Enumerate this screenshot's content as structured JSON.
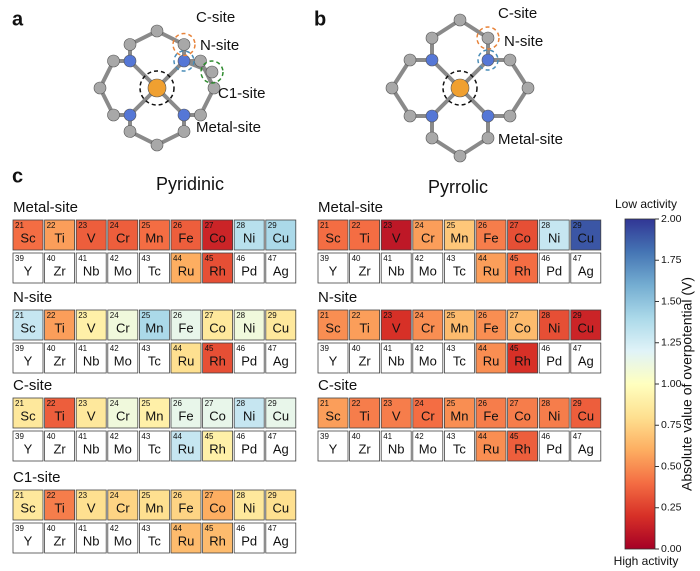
{
  "panel_labels": [
    "a",
    "b",
    "c"
  ],
  "diagrams": [
    {
      "labels": [
        {
          "text": "C-site",
          "color": "#e8833a"
        },
        {
          "text": "N-site",
          "color": "#4a8db8"
        },
        {
          "text": "C1-site",
          "color": "#2e8b2e"
        },
        {
          "text": "Metal-site",
          "color": "#111111"
        }
      ]
    },
    {
      "labels": [
        {
          "text": "C-site",
          "color": "#e8833a"
        },
        {
          "text": "N-site",
          "color": "#4a8db8"
        },
        {
          "text": "Metal-site",
          "color": "#111111"
        }
      ]
    }
  ],
  "elements": {
    "numbers": [
      21,
      22,
      23,
      24,
      25,
      26,
      27,
      28,
      29,
      39,
      40,
      41,
      42,
      43,
      44,
      45,
      46,
      47
    ],
    "symbols": [
      "Sc",
      "Ti",
      "V",
      "Cr",
      "Mn",
      "Fe",
      "Co",
      "Ni",
      "Cu",
      "Y",
      "Zr",
      "Nb",
      "Mo",
      "Tc",
      "Ru",
      "Rh",
      "Pd",
      "Ag"
    ]
  },
  "colorbar": {
    "label": "Absolute value of overpotential (V)",
    "top_label": "Low activity",
    "bottom_label": "High activity",
    "top_color": "#2f2f8f",
    "bottom_color": "#b0103a",
    "ylim": [
      0,
      2
    ],
    "yticks": [
      {
        "value": 0,
        "label": "0.00"
      },
      {
        "value": 0.25,
        "label": "0.25"
      },
      {
        "value": 0.5,
        "label": "0.50"
      },
      {
        "value": 0.75,
        "label": "0.75"
      },
      {
        "value": 1,
        "label": "1.00"
      },
      {
        "value": 1.25,
        "label": "1.25"
      },
      {
        "value": 1.5,
        "label": "1.50"
      },
      {
        "value": 1.75,
        "label": "1.75"
      },
      {
        "value": 2,
        "label": "2.00"
      }
    ],
    "colormap": [
      "#a50026",
      "#d73027",
      "#f46d43",
      "#fdae61",
      "#fee090",
      "#ffffbf",
      "#e0f3f8",
      "#abd9e9",
      "#74add1",
      "#4575b4",
      "#313695"
    ]
  },
  "chart_data": [
    {
      "type": "heatmap",
      "title": "Pyridinic",
      "panels": [
        {
          "title": "Metal-site",
          "values": [
            0.4,
            0.55,
            0.35,
            0.35,
            0.4,
            0.35,
            0.15,
            1.35,
            1.4,
            null,
            null,
            null,
            null,
            null,
            0.6,
            0.3,
            null,
            null
          ]
        },
        {
          "title": "N-site",
          "values": [
            1.3,
            0.55,
            0.9,
            1.1,
            1.4,
            1.15,
            0.85,
            1.1,
            0.85,
            null,
            null,
            null,
            null,
            null,
            0.8,
            0.3,
            null,
            null
          ]
        },
        {
          "title": "C-site",
          "values": [
            0.85,
            0.35,
            0.85,
            1.1,
            0.9,
            1.15,
            1.15,
            1.3,
            1.15,
            null,
            null,
            null,
            null,
            null,
            1.3,
            0.9,
            null,
            null
          ]
        },
        {
          "title": "C1-site",
          "values": [
            0.85,
            0.45,
            0.8,
            0.75,
            0.8,
            0.75,
            0.6,
            0.85,
            0.8,
            null,
            null,
            null,
            null,
            null,
            0.65,
            0.65,
            null,
            null
          ]
        }
      ]
    },
    {
      "type": "heatmap",
      "title": "Pyrrolic",
      "panels": [
        {
          "title": "Metal-site",
          "values": [
            0.4,
            0.4,
            0.1,
            0.55,
            0.7,
            0.45,
            0.3,
            1.3,
            1.9,
            null,
            null,
            null,
            null,
            null,
            0.55,
            0.4,
            null,
            null
          ]
        },
        {
          "title": "N-site",
          "values": [
            0.5,
            0.55,
            0.2,
            0.5,
            0.65,
            0.5,
            0.65,
            0.3,
            0.15,
            null,
            null,
            null,
            null,
            null,
            0.5,
            0.2,
            null,
            null
          ]
        },
        {
          "title": "C-site",
          "values": [
            0.55,
            0.45,
            0.45,
            0.4,
            0.5,
            0.45,
            0.45,
            0.45,
            0.35,
            null,
            null,
            null,
            null,
            null,
            0.5,
            0.35,
            null,
            null
          ]
        }
      ]
    }
  ]
}
